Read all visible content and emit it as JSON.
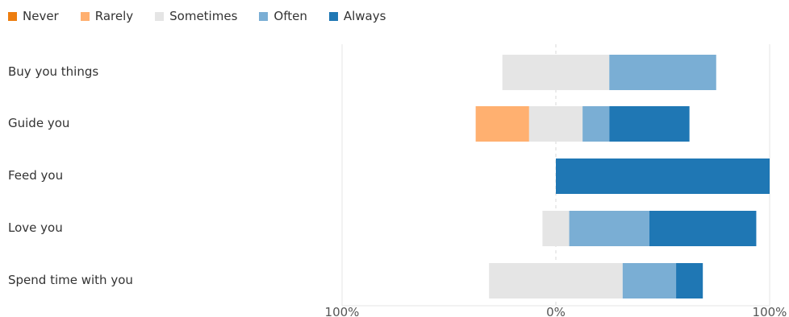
{
  "chart_data": {
    "type": "bar",
    "orientation": "horizontal",
    "stacked": "diverging",
    "legend_position": "top-left",
    "grid": true,
    "xlim": [
      -100,
      100
    ],
    "tick_labels": [
      "100%",
      "0%",
      "100%"
    ],
    "categories": [
      "Buy you things",
      "Guide you",
      "Feed you",
      "Love you",
      "Spend time with you"
    ],
    "series": [
      {
        "name": "Never",
        "color": "#ed7d0f",
        "values": [
          0,
          0,
          0,
          0,
          0
        ]
      },
      {
        "name": "Rarely",
        "color": "#ffb070",
        "values": [
          0,
          25,
          0,
          0,
          0
        ]
      },
      {
        "name": "Sometimes",
        "color": "#e5e5e5",
        "values": [
          50,
          25,
          0,
          12.5,
          62.5
        ]
      },
      {
        "name": "Often",
        "color": "#7aaed4",
        "values": [
          50,
          12.5,
          0,
          37.5,
          25
        ]
      },
      {
        "name": "Always",
        "color": "#1f77b4",
        "values": [
          0,
          37.5,
          100,
          50,
          12.5
        ]
      }
    ]
  }
}
